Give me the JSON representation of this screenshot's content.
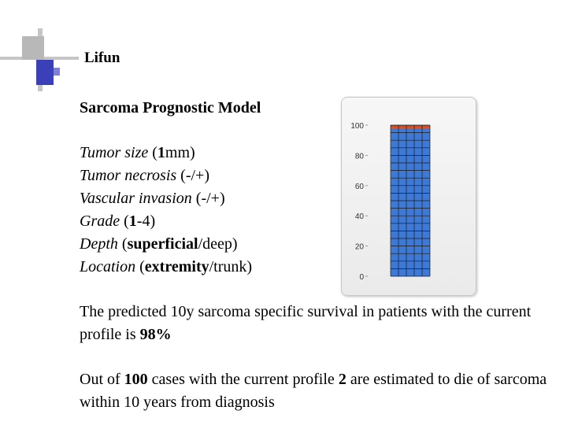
{
  "header": {
    "title": "Lifun"
  },
  "model": {
    "title": "Sarcoma Prognostic Model",
    "parameters": [
      {
        "name": "Tumor size",
        "pre": " (",
        "bold": "1",
        "rest": "mm)"
      },
      {
        "name": "Tumor necrosis",
        "pre": " (-/+)",
        "bold": "",
        "rest": ""
      },
      {
        "name": "Vascular invasion",
        "pre": " (-/+)",
        "bold": "",
        "rest": ""
      },
      {
        "name": "Grade",
        "pre": " (",
        "bold": "1",
        "rest": "-4)"
      },
      {
        "name": "Depth",
        "pre": " (",
        "bold": "superficial",
        "rest": "/deep)"
      },
      {
        "name": "Location",
        "pre": " (",
        "bold": "extremity",
        "rest": "/trunk)"
      }
    ]
  },
  "result": {
    "survival_pre": "The predicted 10y sarcoma specific survival in patients with the current profile is ",
    "survival_value": "98%",
    "cases_pre": "Out of ",
    "cases_total": "100",
    "cases_mid": " cases with the current profile ",
    "cases_deaths": "2",
    "cases_post": " are estimated to die of sarcoma within 10 years from diagnosis"
  },
  "colors": {
    "survive": "#3f79d6",
    "die": "#d24a1f",
    "grid_line": "#1a1a1a"
  },
  "chart_data": {
    "type": "bar",
    "categories": [
      "current profile"
    ],
    "series": [
      {
        "values": [
          98
        ],
        "color": "#3f79d6"
      },
      {
        "values": [
          2
        ],
        "color": "#d24a1f"
      }
    ],
    "ylim": [
      0,
      100
    ],
    "yticks": [
      0,
      20,
      40,
      60,
      80,
      100
    ],
    "title": "",
    "xlabel": "",
    "ylabel": "",
    "grid": true,
    "cells_per_row": 5
  }
}
